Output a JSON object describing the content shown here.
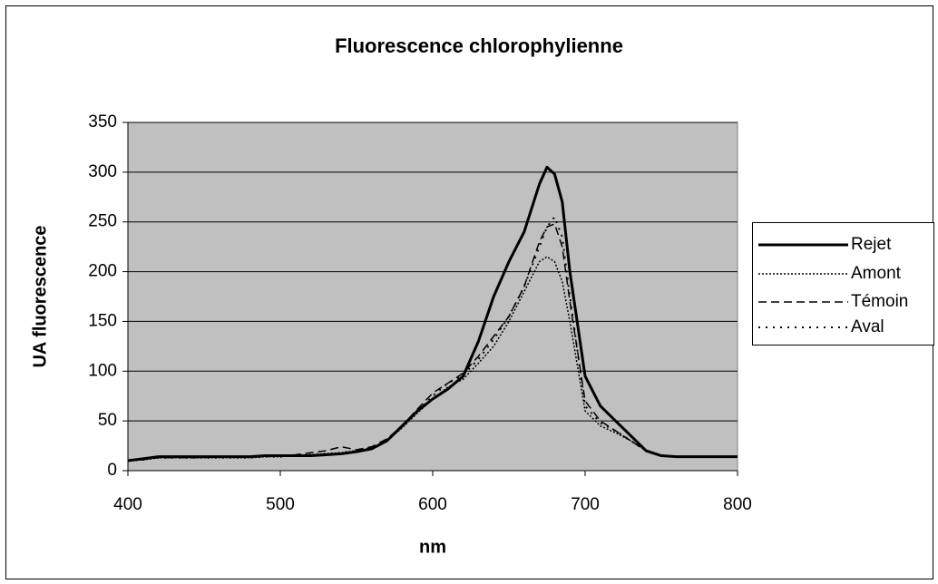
{
  "chart_data": {
    "type": "line",
    "title": "Fluorescence chlorophylienne",
    "x_label": "nm",
    "y_label": "UA fluorescence",
    "x": [
      400,
      410,
      420,
      430,
      440,
      450,
      460,
      470,
      480,
      490,
      500,
      510,
      520,
      530,
      540,
      550,
      560,
      570,
      580,
      590,
      600,
      610,
      620,
      630,
      640,
      650,
      660,
      670,
      675,
      680,
      685,
      690,
      700,
      710,
      720,
      730,
      740,
      750,
      760,
      770,
      780,
      790,
      800
    ],
    "series": [
      {
        "name": "Rejet",
        "color": "#000000",
        "dash": "none",
        "width": 3,
        "values": [
          10,
          12,
          14,
          14,
          14,
          14,
          14,
          14,
          14,
          15,
          15,
          15,
          15,
          16,
          17,
          19,
          22,
          30,
          45,
          60,
          72,
          82,
          95,
          130,
          175,
          210,
          240,
          288,
          305,
          298,
          270,
          200,
          95,
          65,
          50,
          35,
          20,
          15,
          14,
          14,
          14,
          14,
          14
        ]
      },
      {
        "name": "Amont",
        "color": "#000000",
        "dash": "2,2",
        "width": 1.5,
        "values": [
          10,
          11,
          13,
          13,
          13,
          13,
          13,
          13,
          13,
          14,
          14,
          15,
          16,
          17,
          18,
          20,
          22,
          30,
          43,
          58,
          72,
          84,
          92,
          108,
          125,
          150,
          180,
          210,
          215,
          210,
          190,
          150,
          60,
          45,
          38,
          30,
          20,
          15,
          14,
          14,
          14,
          14,
          14
        ]
      },
      {
        "name": "Témoin",
        "color": "#000000",
        "dash": "9,5",
        "width": 1.5,
        "values": [
          10,
          11,
          13,
          13,
          13,
          13,
          14,
          14,
          14,
          14,
          15,
          16,
          18,
          20,
          24,
          21,
          24,
          32,
          45,
          62,
          78,
          88,
          98,
          115,
          135,
          155,
          185,
          230,
          245,
          248,
          225,
          170,
          70,
          50,
          40,
          30,
          20,
          15,
          14,
          14,
          14,
          14,
          14
        ]
      },
      {
        "name": "Aval",
        "color": "#000000",
        "dash": "2,6",
        "width": 2,
        "values": [
          10,
          11,
          13,
          13,
          13,
          13,
          13,
          13,
          13,
          14,
          14,
          15,
          16,
          17,
          18,
          20,
          23,
          31,
          44,
          60,
          75,
          88,
          96,
          112,
          132,
          155,
          185,
          225,
          245,
          255,
          235,
          175,
          65,
          48,
          40,
          30,
          20,
          15,
          14,
          14,
          14,
          14,
          14
        ]
      }
    ],
    "xlim": [
      400,
      800
    ],
    "xticks": [
      400,
      500,
      600,
      700,
      800
    ],
    "ylim": [
      0,
      350
    ],
    "yticks": [
      0,
      50,
      100,
      150,
      200,
      250,
      300,
      350
    ],
    "grid": true,
    "legend": "right",
    "plot_background": "#c0c0c0"
  }
}
